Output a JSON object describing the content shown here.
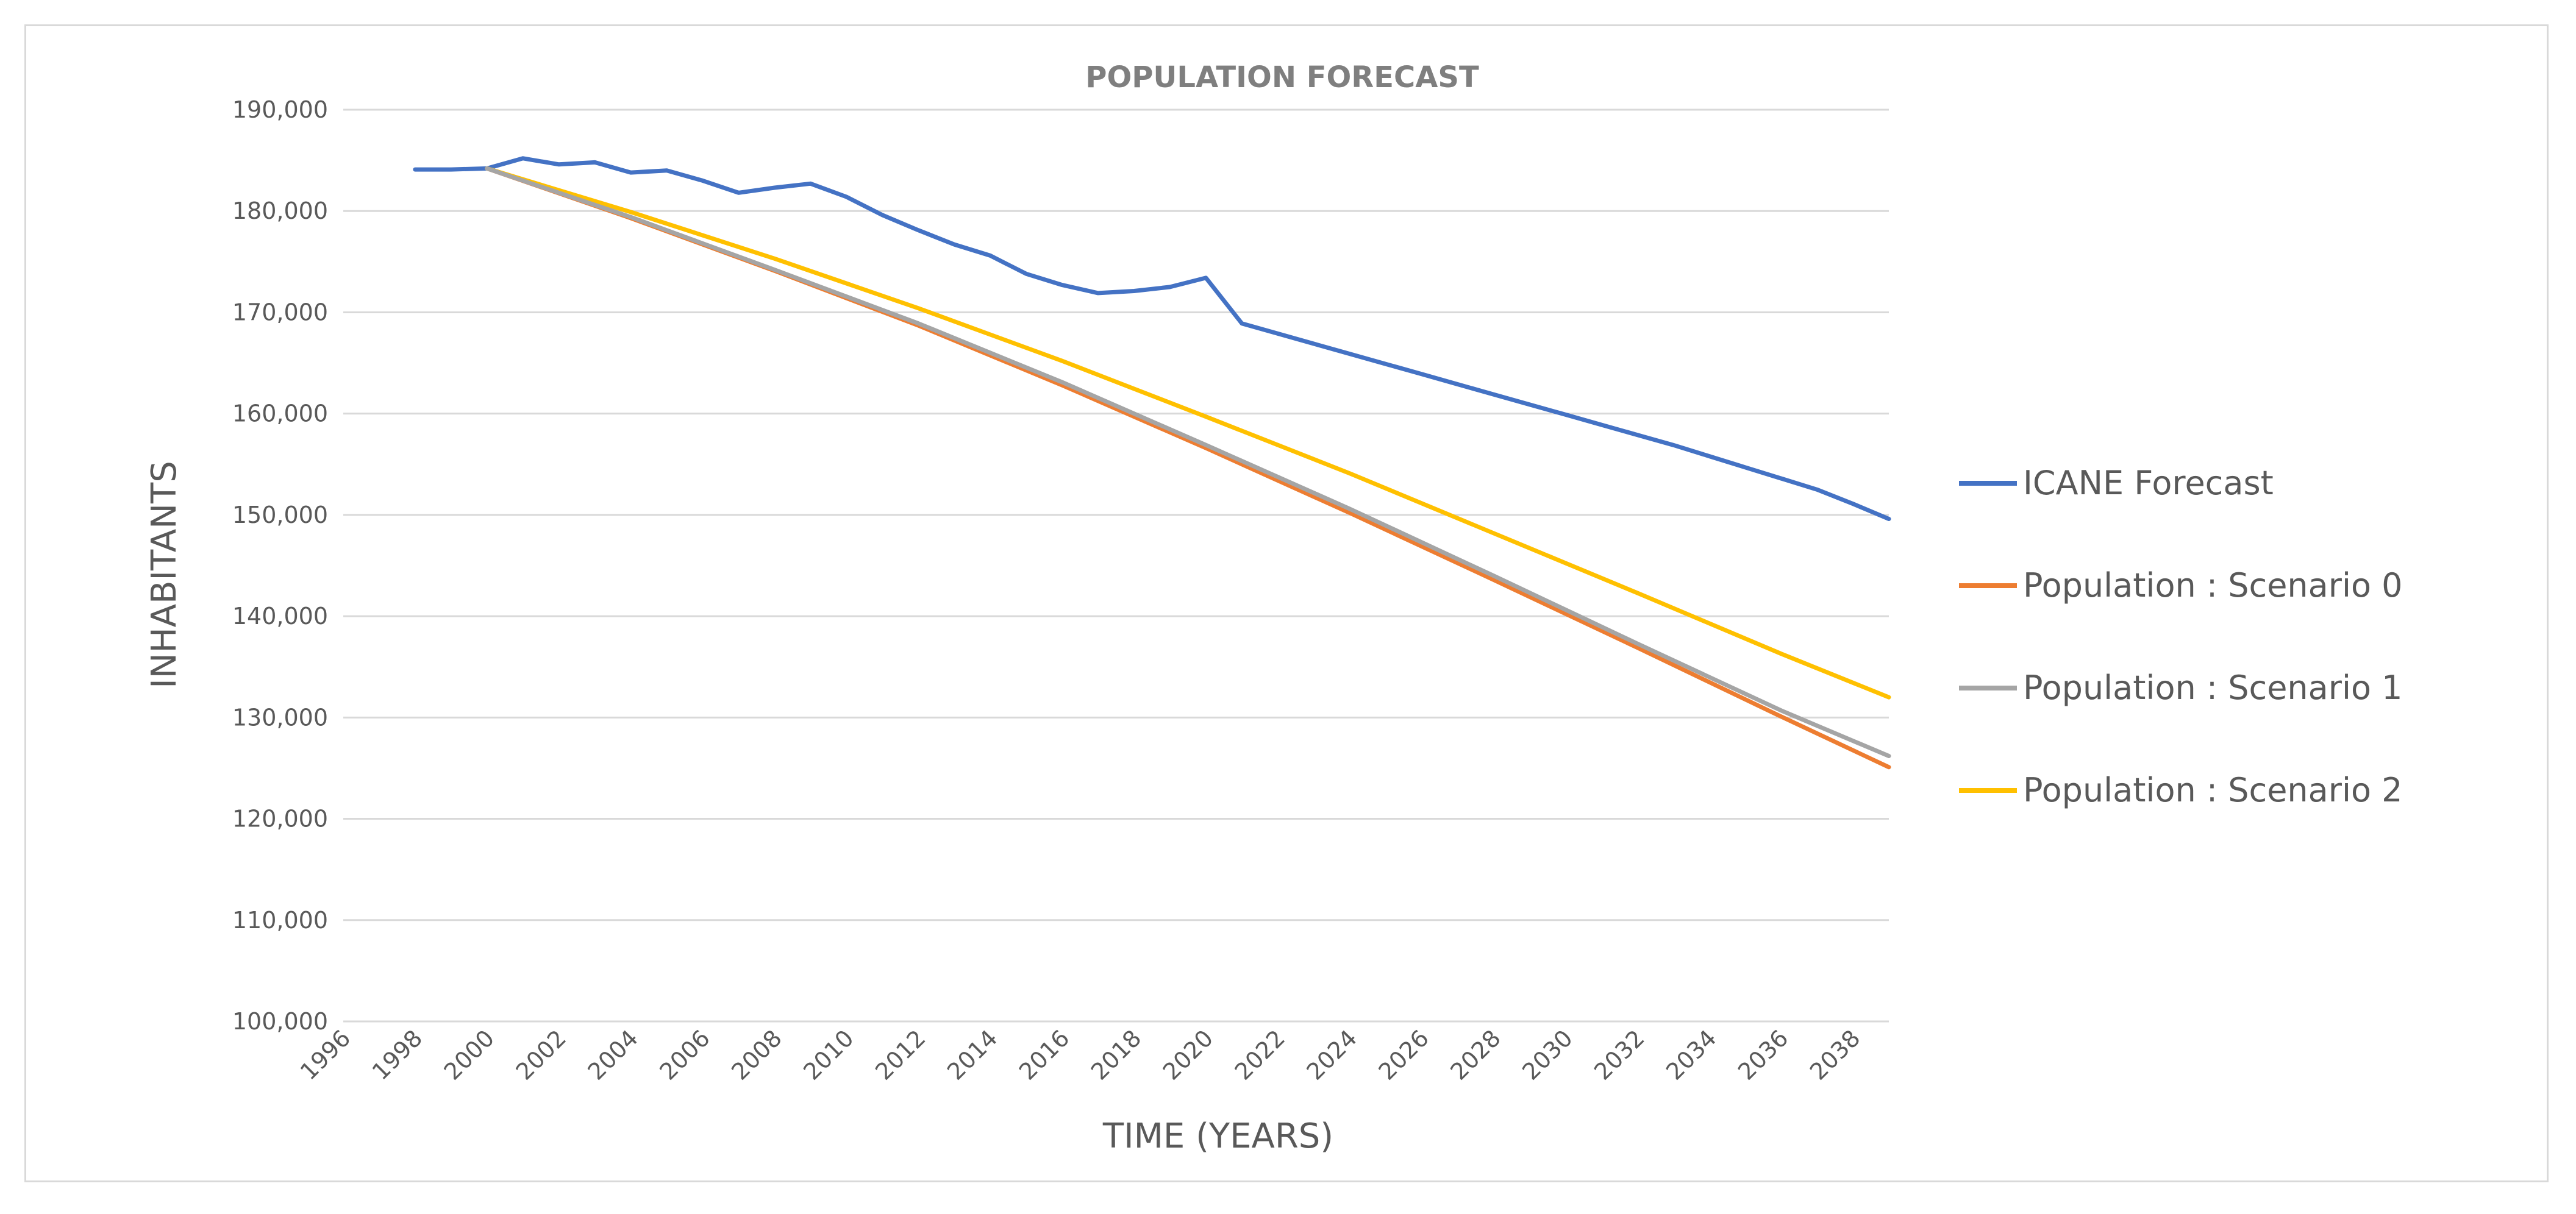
{
  "chart_data": {
    "type": "line",
    "title": "POPULATION  FORECAST",
    "xlabel": "TIME (YEARS)",
    "ylabel": "INHABITANTS",
    "xlim": [
      1996,
      2039
    ],
    "ylim": [
      100000,
      190000
    ],
    "x_ticks": [
      "1996",
      "1998",
      "2000",
      "2002",
      "2004",
      "2006",
      "2008",
      "2010",
      "2012",
      "2014",
      "2016",
      "2018",
      "2020",
      "2022",
      "2024",
      "2026",
      "2028",
      "2030",
      "2032",
      "2034",
      "2036",
      "2038"
    ],
    "y_ticks": [
      "100,000",
      "110,000",
      "120,000",
      "130,000",
      "140,000",
      "150,000",
      "160,000",
      "170,000",
      "180,000",
      "190,000"
    ],
    "grid": true,
    "legend_position": "right",
    "series": [
      {
        "name": "ICANE Forecast",
        "color": "#4472c4",
        "x": [
          1998,
          1999,
          2000,
          2001,
          2002,
          2003,
          2004,
          2005,
          2006,
          2007,
          2008,
          2009,
          2010,
          2011,
          2012,
          2013,
          2014,
          2015,
          2016,
          2017,
          2018,
          2019,
          2020,
          2021,
          2022,
          2023,
          2024,
          2025,
          2026,
          2027,
          2028,
          2029,
          2030,
          2031,
          2032,
          2033,
          2034,
          2035,
          2036,
          2037,
          2038,
          2039
        ],
        "values": [
          184100,
          184100,
          184200,
          185200,
          184600,
          184800,
          183800,
          184000,
          183000,
          181800,
          182300,
          182700,
          181400,
          179600,
          178100,
          176700,
          175600,
          173800,
          172700,
          171900,
          172100,
          172500,
          173400,
          168900,
          167900,
          166900,
          165900,
          164900,
          163900,
          162900,
          161900,
          160900,
          159900,
          158900,
          157900,
          156900,
          155800,
          154700,
          153600,
          152500,
          151100,
          149600
        ]
      },
      {
        "name": "Population : Scenario 0",
        "color": "#ed7d31",
        "x": [
          2000,
          2004,
          2008,
          2012,
          2016,
          2020,
          2024,
          2028,
          2032,
          2036,
          2039
        ],
        "values": [
          184200,
          179300,
          174100,
          168700,
          162800,
          156600,
          150200,
          143600,
          136900,
          130100,
          125100
        ]
      },
      {
        "name": "Population : Scenario 1",
        "color": "#a5a5a5",
        "x": [
          2000,
          2004,
          2008,
          2012,
          2016,
          2020,
          2024,
          2028,
          2032,
          2036,
          2039
        ],
        "values": [
          184200,
          179400,
          174200,
          168900,
          163100,
          156900,
          150600,
          144000,
          137300,
          130700,
          126200
        ]
      },
      {
        "name": "Population : Scenario 2",
        "color": "#ffc000",
        "x": [
          2000,
          2004,
          2008,
          2012,
          2016,
          2020,
          2024,
          2028,
          2032,
          2036,
          2039
        ],
        "values": [
          184200,
          179900,
          175300,
          170400,
          165200,
          159700,
          154100,
          148200,
          142300,
          136300,
          132000
        ]
      }
    ]
  }
}
